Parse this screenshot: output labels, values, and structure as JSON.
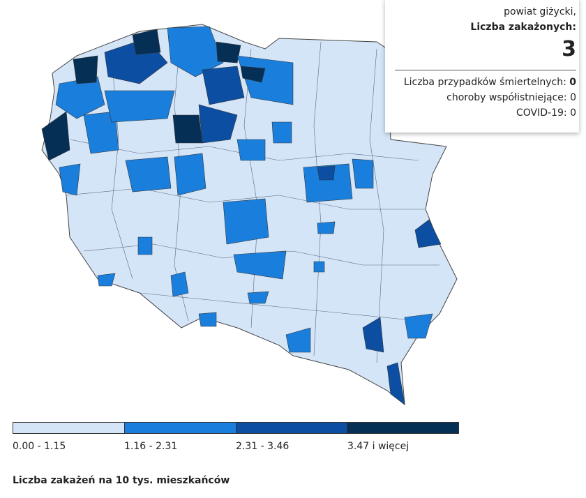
{
  "tooltip": {
    "region": "powiat giżycki,",
    "cases_label": "Liczba zakażonych:",
    "cases": 3,
    "deaths_label": "Liczba przypadków śmiertelnych:",
    "deaths": 0,
    "comorbid_label": "choroby współistniejące:",
    "comorbid": 0,
    "covid_label": "COVID-19:",
    "covid": 0
  },
  "legend": {
    "title": "Liczba zakażeń na 10 tys. mieszkańców",
    "items": [
      {
        "label": "0.00 - 1.15",
        "color": "#d4e5f8"
      },
      {
        "label": "1.16 - 2.31",
        "color": "#1a7fdc"
      },
      {
        "label": "2.31 - 3.46",
        "color": "#0b4ea2"
      },
      {
        "label": "3.47 i więcej",
        "color": "#062f55"
      }
    ]
  }
}
